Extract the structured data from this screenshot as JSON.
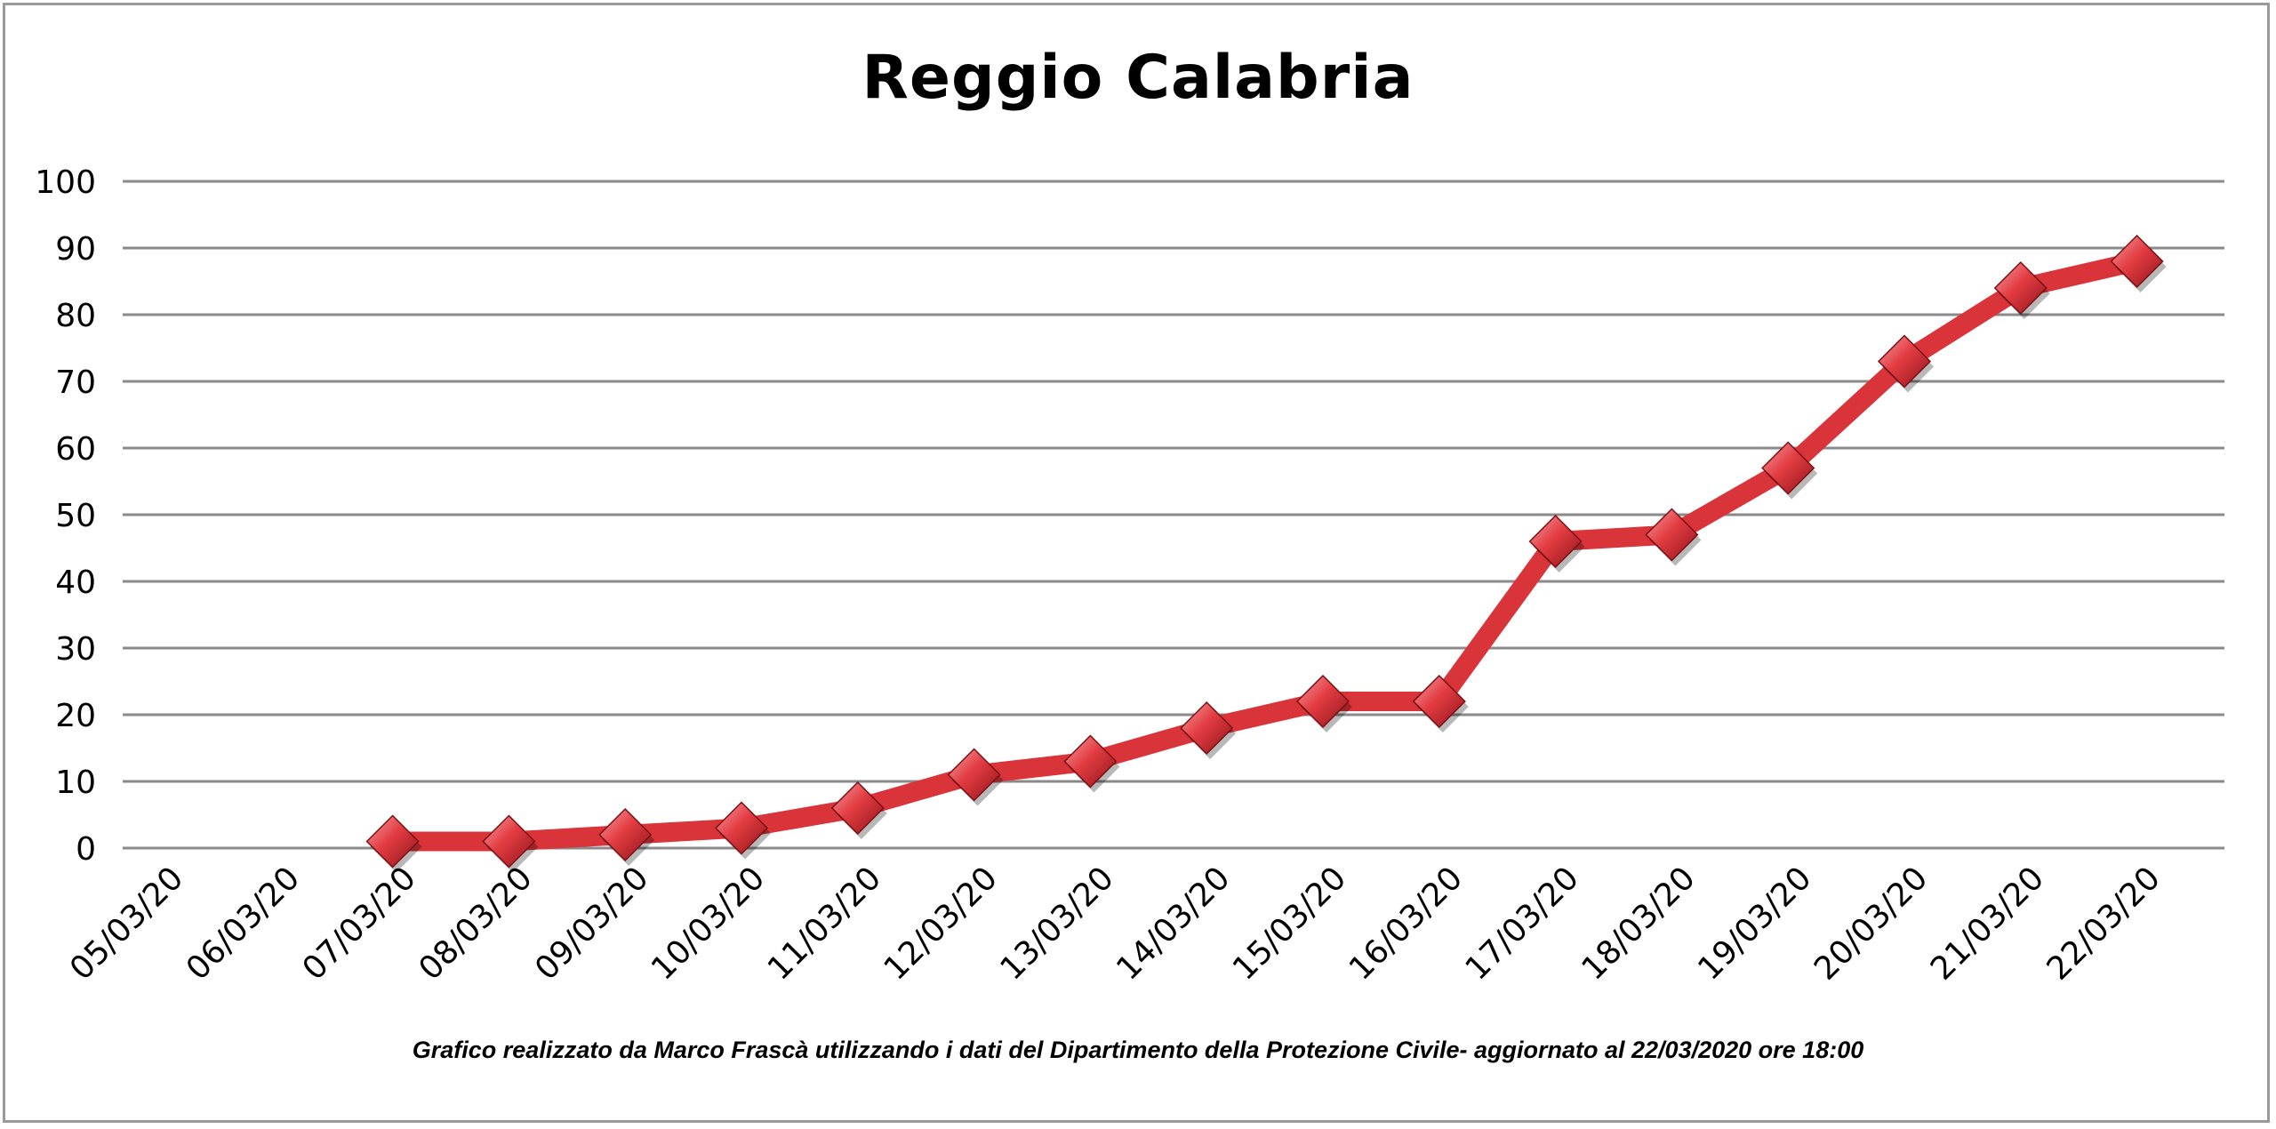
{
  "chart_data": {
    "type": "line",
    "title": "Reggio Calabria",
    "footer": "Grafico  realizzato da Marco Frascà  utilizzando i dati del Dipartimento  della Protezione Civile- aggiornato  al 22/03/2020 ore 18:00",
    "categories": [
      "05/03/20",
      "06/03/20",
      "07/03/20",
      "08/03/20",
      "09/03/20",
      "10/03/20",
      "11/03/20",
      "12/03/20",
      "13/03/20",
      "14/03/20",
      "15/03/20",
      "16/03/20",
      "17/03/20",
      "18/03/20",
      "19/03/20",
      "20/03/20",
      "21/03/20",
      "22/03/20"
    ],
    "series": [
      {
        "values": [
          null,
          null,
          1,
          1,
          2,
          3,
          6,
          11,
          13,
          18,
          22,
          22,
          46,
          47,
          57,
          73,
          84,
          88
        ],
        "color": "#d9343a"
      }
    ],
    "ylim": [
      0,
      100
    ],
    "yticks": [
      "0",
      "10",
      "20",
      "30",
      "40",
      "50",
      "60",
      "70",
      "80",
      "90",
      "100"
    ],
    "grid": true,
    "legend": "none"
  }
}
